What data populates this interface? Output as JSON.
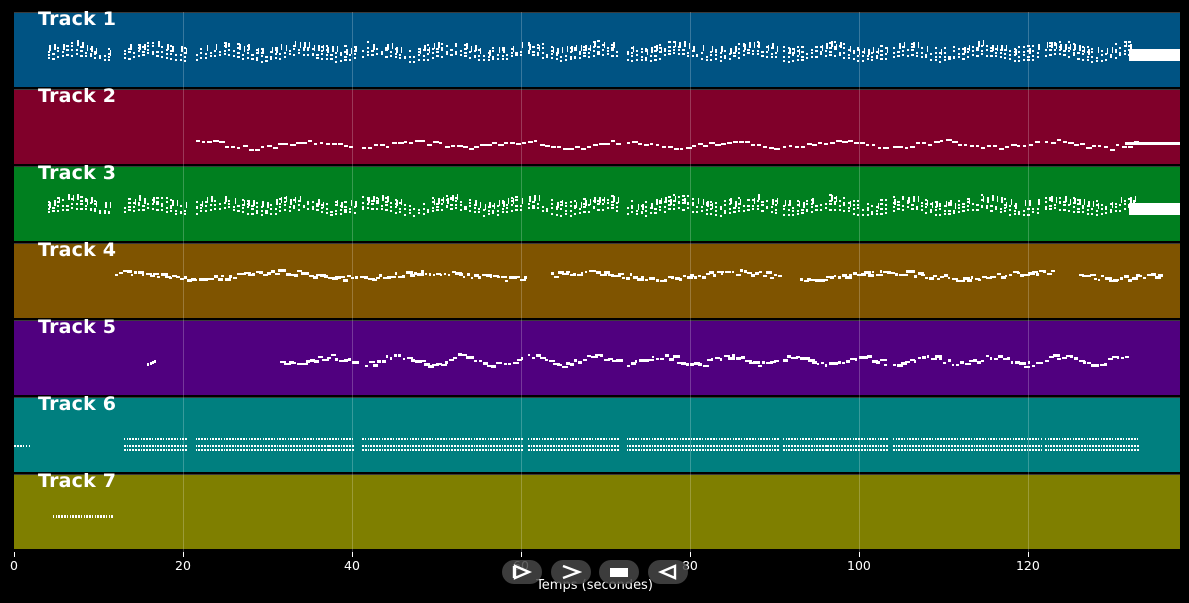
{
  "tracks": [
    {
      "label": "Track 1",
      "color": "#005383",
      "style": "dense-chords"
    },
    {
      "label": "Track 2",
      "color": "#80002A",
      "style": "sparse-line"
    },
    {
      "label": "Track 3",
      "color": "#007F1F",
      "style": "dense-chords"
    },
    {
      "label": "Track 4",
      "color": "#7F5400",
      "style": "melody"
    },
    {
      "label": "Track 5",
      "color": "#50007F",
      "style": "melody-high"
    },
    {
      "label": "Track 6",
      "color": "#007F7F",
      "style": "percussion"
    },
    {
      "label": "Track 7",
      "color": "#7F7F00",
      "style": "short-perc"
    }
  ],
  "x_axis": {
    "ticks": [
      "0",
      "20",
      "40",
      "60",
      "80",
      "100",
      "120"
    ],
    "tick_values": [
      0,
      20,
      40,
      60,
      80,
      100,
      120
    ],
    "max_seconds": 138,
    "label": "Temps (secondes)"
  },
  "controls": [
    {
      "name": "skip-start-icon"
    },
    {
      "name": "play-icon"
    },
    {
      "name": "stop-icon"
    },
    {
      "name": "rewind-icon"
    }
  ]
}
